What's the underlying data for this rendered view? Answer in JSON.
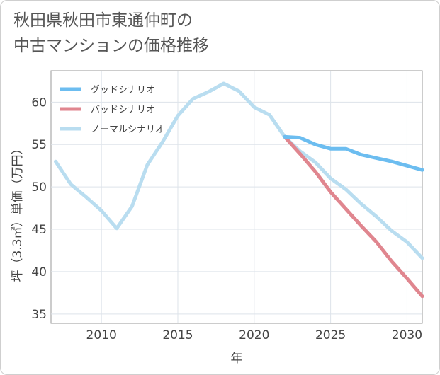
{
  "title_line1": "秋田県秋田市東通仲町の",
  "title_line2": "中古マンションの価格推移",
  "chart_data": {
    "type": "line",
    "title": "秋田県秋田市東通仲町の中古マンションの価格推移",
    "xlabel": "年",
    "ylabel": "坪（3.3㎡）単価（万円）",
    "xlim": [
      2006.7,
      2031
    ],
    "ylim": [
      33.9,
      63.7
    ],
    "xticks": [
      2010,
      2015,
      2020,
      2025,
      2030
    ],
    "yticks": [
      35,
      40,
      45,
      50,
      55,
      60
    ],
    "grid": true,
    "legend_position": "top-left",
    "series": [
      {
        "name": "グッドシナリオ",
        "color": "#6cbdf0",
        "x": [
          2022,
          2023,
          2024,
          2025,
          2026,
          2027,
          2028,
          2029,
          2030,
          2031
        ],
        "values": [
          55.9,
          55.8,
          55.0,
          54.5,
          54.5,
          53.8,
          53.4,
          53.0,
          52.5,
          52.0
        ]
      },
      {
        "name": "バッドシナリオ",
        "color": "#e0868f",
        "x": [
          2022,
          2023,
          2024,
          2025,
          2026,
          2027,
          2028,
          2029,
          2030,
          2031
        ],
        "values": [
          55.9,
          53.9,
          51.8,
          49.4,
          47.4,
          45.4,
          43.5,
          41.2,
          39.2,
          37.1
        ]
      },
      {
        "name": "ノーマルシナリオ",
        "color": "#b9ddf0",
        "x": [
          2007,
          2008,
          2009,
          2010,
          2011,
          2012,
          2013,
          2014,
          2015,
          2016,
          2017,
          2018,
          2019,
          2020,
          2021,
          2022,
          2023,
          2024,
          2025,
          2026,
          2027,
          2028,
          2029,
          2030,
          2031
        ],
        "values": [
          53.0,
          50.3,
          48.8,
          47.2,
          45.1,
          47.7,
          52.6,
          55.3,
          58.4,
          60.4,
          61.2,
          62.2,
          61.3,
          59.4,
          58.5,
          55.9,
          54.2,
          52.9,
          51.0,
          49.7,
          48.0,
          46.5,
          44.8,
          43.5,
          41.6
        ]
      }
    ]
  }
}
